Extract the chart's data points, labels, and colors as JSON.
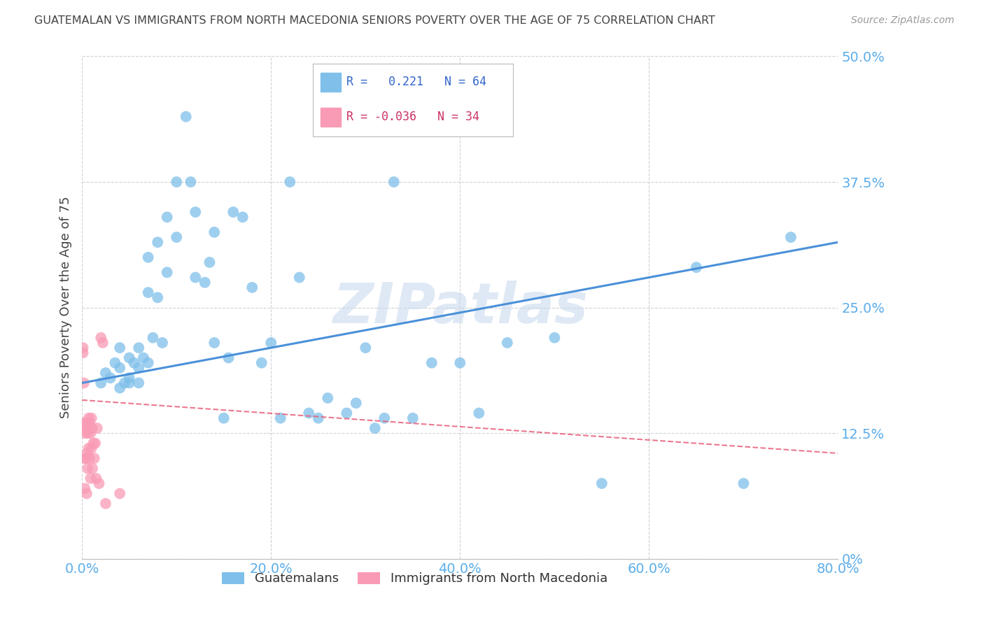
{
  "title": "GUATEMALAN VS IMMIGRANTS FROM NORTH MACEDONIA SENIORS POVERTY OVER THE AGE OF 75 CORRELATION CHART",
  "source": "Source: ZipAtlas.com",
  "ylabel": "Seniors Poverty Over the Age of 75",
  "xlim": [
    0.0,
    0.8
  ],
  "ylim": [
    0.0,
    0.5
  ],
  "yticks": [
    0.0,
    0.125,
    0.25,
    0.375,
    0.5
  ],
  "xticks": [
    0.0,
    0.2,
    0.4,
    0.6,
    0.8
  ],
  "ytick_labels": [
    "0%",
    "12.5%",
    "25.0%",
    "37.5%",
    "50.0%"
  ],
  "xtick_labels": [
    "0.0%",
    "20.0%",
    "40.0%",
    "60.0%",
    "80.0%"
  ],
  "blue_R": 0.221,
  "blue_N": 64,
  "pink_R": -0.036,
  "pink_N": 34,
  "title_color": "#444444",
  "source_color": "#999999",
  "blue_color": "#7fbfea",
  "pink_color": "#f99bb5",
  "blue_line_color": "#4a90d9",
  "pink_line_color": "#e8607a",
  "axis_label_color": "#5badea",
  "grid_color": "#cccccc",
  "watermark": "ZIPatlas",
  "blue_line_x0": 0.0,
  "blue_line_y0": 0.175,
  "blue_line_x1": 0.8,
  "blue_line_y1": 0.315,
  "pink_line_x0": 0.0,
  "pink_line_y0": 0.158,
  "pink_line_x1": 0.8,
  "pink_line_y1": 0.105,
  "blue_x": [
    0.02,
    0.025,
    0.03,
    0.035,
    0.04,
    0.04,
    0.04,
    0.045,
    0.05,
    0.05,
    0.05,
    0.055,
    0.06,
    0.06,
    0.06,
    0.065,
    0.07,
    0.07,
    0.07,
    0.075,
    0.08,
    0.08,
    0.085,
    0.09,
    0.09,
    0.1,
    0.1,
    0.11,
    0.115,
    0.12,
    0.12,
    0.13,
    0.135,
    0.14,
    0.14,
    0.15,
    0.155,
    0.16,
    0.17,
    0.18,
    0.19,
    0.2,
    0.21,
    0.22,
    0.23,
    0.24,
    0.25,
    0.26,
    0.28,
    0.29,
    0.3,
    0.31,
    0.32,
    0.33,
    0.35,
    0.37,
    0.4,
    0.42,
    0.45,
    0.5,
    0.55,
    0.65,
    0.7,
    0.75
  ],
  "blue_y": [
    0.175,
    0.185,
    0.18,
    0.195,
    0.17,
    0.19,
    0.21,
    0.175,
    0.18,
    0.2,
    0.175,
    0.195,
    0.19,
    0.21,
    0.175,
    0.2,
    0.3,
    0.265,
    0.195,
    0.22,
    0.315,
    0.26,
    0.215,
    0.34,
    0.285,
    0.375,
    0.32,
    0.44,
    0.375,
    0.345,
    0.28,
    0.275,
    0.295,
    0.325,
    0.215,
    0.14,
    0.2,
    0.345,
    0.34,
    0.27,
    0.195,
    0.215,
    0.14,
    0.375,
    0.28,
    0.145,
    0.14,
    0.16,
    0.145,
    0.155,
    0.21,
    0.13,
    0.14,
    0.375,
    0.14,
    0.195,
    0.195,
    0.145,
    0.215,
    0.22,
    0.075,
    0.29,
    0.075,
    0.32
  ],
  "pink_x": [
    0.001,
    0.001,
    0.002,
    0.002,
    0.003,
    0.003,
    0.003,
    0.004,
    0.004,
    0.005,
    0.005,
    0.005,
    0.006,
    0.006,
    0.007,
    0.007,
    0.008,
    0.008,
    0.009,
    0.009,
    0.01,
    0.01,
    0.011,
    0.011,
    0.012,
    0.013,
    0.014,
    0.015,
    0.016,
    0.018,
    0.02,
    0.022,
    0.025,
    0.04
  ],
  "pink_y": [
    0.21,
    0.205,
    0.175,
    0.135,
    0.125,
    0.1,
    0.07,
    0.135,
    0.1,
    0.13,
    0.105,
    0.065,
    0.125,
    0.09,
    0.14,
    0.11,
    0.135,
    0.1,
    0.125,
    0.08,
    0.14,
    0.11,
    0.13,
    0.09,
    0.115,
    0.1,
    0.115,
    0.08,
    0.13,
    0.075,
    0.22,
    0.215,
    0.055,
    0.065
  ]
}
